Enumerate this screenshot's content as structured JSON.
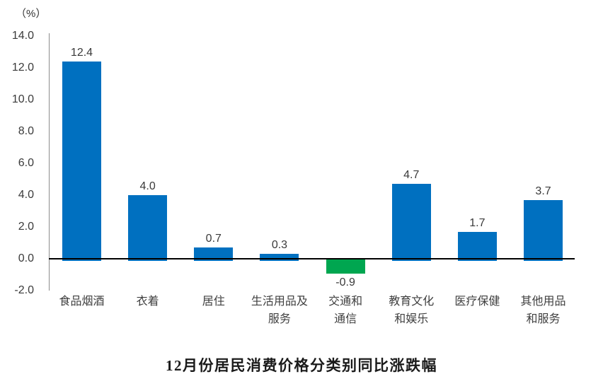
{
  "chart": {
    "unit_label": "（%）",
    "title": "12月份居民消费价格分类别同比涨跌幅"
  },
  "chart_data": {
    "type": "bar",
    "title": "12月份居民消费价格分类别同比涨跌幅",
    "ylabel": "（%）",
    "categories": [
      "食品烟酒",
      "衣着",
      "居住",
      "生活用品及\n服务",
      "交通和\n通信",
      "教育文化\n和娱乐",
      "医疗保健",
      "其他用品\n和服务"
    ],
    "values": [
      12.4,
      4.0,
      0.7,
      0.3,
      -0.9,
      4.7,
      1.7,
      3.7
    ],
    "value_labels": [
      "12.4",
      "4.0",
      "0.7",
      "0.3",
      "-0.9",
      "4.7",
      "1.7",
      "3.7"
    ],
    "ylim": [
      -2.0,
      14.0
    ],
    "ytick_step": 2.0,
    "ytick_labels": [
      "-2.0",
      "0.0",
      "2.0",
      "4.0",
      "6.0",
      "8.0",
      "10.0",
      "12.0",
      "14.0"
    ],
    "grid": false,
    "legend": false,
    "bar_color_positive": "#0070C0",
    "bar_color_negative": "#00A650",
    "colors": [
      "#0070C0",
      "#0070C0",
      "#0070C0",
      "#0070C0",
      "#00A650",
      "#0070C0",
      "#0070C0",
      "#0070C0"
    ]
  }
}
